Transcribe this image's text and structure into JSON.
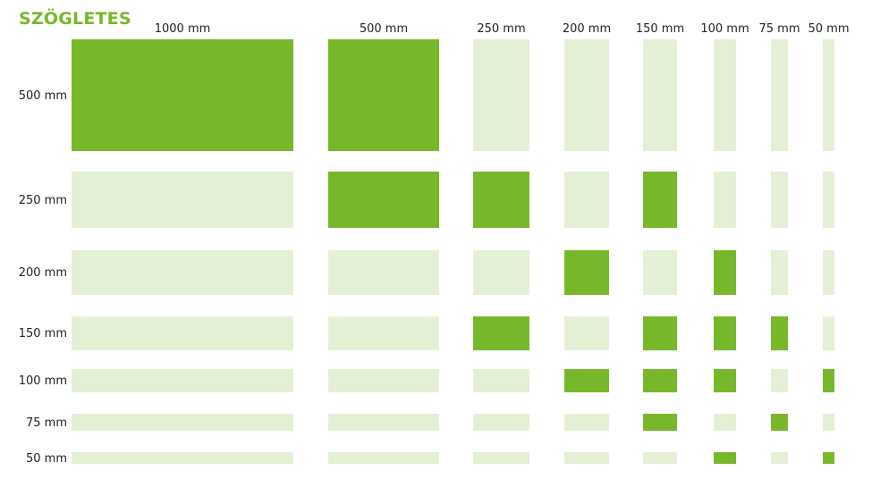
{
  "title": "SZÖGLETES",
  "colors": {
    "available": "#77b82a",
    "unavailable": "#e4f0d6",
    "title": "#77b82a"
  },
  "columns": [
    "1000 mm",
    "500 mm",
    "250 mm",
    "200 mm",
    "150 mm",
    "100 mm",
    "75 mm",
    "50 mm"
  ],
  "rows": [
    "500 mm",
    "250 mm",
    "200 mm",
    "150 mm",
    "100 mm",
    "75 mm",
    "50 mm"
  ],
  "available": [
    [
      true,
      true,
      false,
      false,
      false,
      false,
      false,
      false
    ],
    [
      false,
      true,
      true,
      false,
      true,
      false,
      false,
      false
    ],
    [
      false,
      false,
      false,
      true,
      false,
      true,
      false,
      false
    ],
    [
      false,
      false,
      true,
      false,
      true,
      true,
      true,
      false
    ],
    [
      false,
      false,
      false,
      true,
      true,
      true,
      false,
      true
    ],
    [
      false,
      false,
      false,
      false,
      true,
      false,
      true,
      false
    ],
    [
      false,
      false,
      false,
      false,
      false,
      true,
      false,
      true
    ]
  ]
}
